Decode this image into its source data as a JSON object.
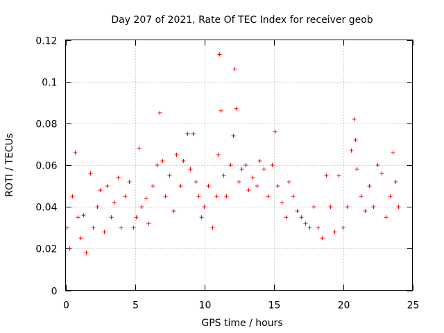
{
  "chart_data": {
    "type": "scatter",
    "title": "Day 207 of 2021, Rate Of TEC Index for receiver geob",
    "xlabel": "GPS time / hours",
    "ylabel": "ROTI / TECUs",
    "xlim": [
      0,
      25
    ],
    "ylim": [
      0,
      0.12
    ],
    "xticks": [
      0,
      5,
      10,
      15,
      20,
      25
    ],
    "xtick_labels": [
      "0",
      "5",
      "10",
      "15",
      "20",
      "25"
    ],
    "yticks": [
      0,
      0.02,
      0.04,
      0.06,
      0.08,
      0.1,
      0.12
    ],
    "ytick_labels": [
      "0",
      "0.02",
      "0.04",
      "0.06",
      "0.08",
      "0.1",
      "0.12"
    ],
    "grid": true,
    "marker": "+",
    "series": [
      {
        "name": "ROTI",
        "color": "#ff0000",
        "x": [
          0.1,
          0.3,
          0.5,
          0.7,
          0.9,
          1.1,
          1.3,
          1.5,
          1.8,
          2.0,
          2.3,
          2.5,
          2.8,
          3.0,
          3.3,
          3.5,
          3.8,
          4.0,
          4.3,
          4.6,
          4.9,
          5.1,
          5.3,
          5.5,
          5.8,
          6.0,
          6.3,
          6.6,
          6.8,
          7.0,
          7.2,
          7.5,
          7.8,
          8.0,
          8.3,
          8.5,
          8.8,
          9.0,
          9.2,
          9.4,
          9.6,
          9.8,
          10.0,
          10.3,
          10.6,
          10.9,
          11.0,
          11.1,
          11.2,
          11.4,
          11.6,
          11.9,
          12.1,
          12.2,
          12.3,
          12.5,
          12.7,
          13.0,
          13.2,
          13.5,
          13.8,
          14.0,
          14.3,
          14.6,
          14.9,
          15.1,
          15.3,
          15.6,
          15.9,
          16.1,
          16.4,
          16.7,
          17.0,
          17.3,
          17.6,
          17.9,
          18.2,
          18.5,
          18.8,
          19.1,
          19.4,
          19.7,
          20.0,
          20.3,
          20.6,
          20.8,
          20.9,
          21.0,
          21.3,
          21.6,
          21.9,
          22.2,
          22.5,
          22.8,
          23.1,
          23.4,
          23.6,
          23.8,
          24.0
        ],
        "y": [
          0.03,
          0.02,
          0.045,
          0.066,
          0.035,
          0.025,
          0.036,
          0.018,
          0.056,
          0.03,
          0.04,
          0.048,
          0.028,
          0.05,
          0.035,
          0.042,
          0.054,
          0.03,
          0.045,
          0.052,
          0.03,
          0.035,
          0.068,
          0.04,
          0.044,
          0.032,
          0.05,
          0.06,
          0.085,
          0.062,
          0.045,
          0.055,
          0.038,
          0.065,
          0.05,
          0.062,
          0.075,
          0.058,
          0.075,
          0.052,
          0.045,
          0.035,
          0.04,
          0.05,
          0.03,
          0.045,
          0.065,
          0.113,
          0.086,
          0.055,
          0.045,
          0.06,
          0.074,
          0.106,
          0.087,
          0.052,
          0.058,
          0.06,
          0.048,
          0.054,
          0.05,
          0.062,
          0.058,
          0.045,
          0.06,
          0.076,
          0.05,
          0.042,
          0.035,
          0.052,
          0.045,
          0.038,
          0.035,
          0.032,
          0.03,
          0.04,
          0.03,
          0.025,
          0.055,
          0.04,
          0.028,
          0.055,
          0.03,
          0.04,
          0.067,
          0.082,
          0.072,
          0.058,
          0.045,
          0.038,
          0.05,
          0.04,
          0.06,
          0.056,
          0.035,
          0.045,
          0.066,
          0.052,
          0.04
        ]
      }
    ]
  }
}
